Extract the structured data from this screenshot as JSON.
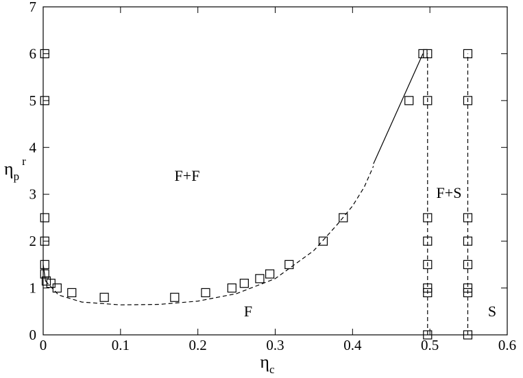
{
  "chart_data": {
    "type": "scatter",
    "xlabel": {
      "symbol": "η",
      "subscript": "c"
    },
    "ylabel": {
      "symbol": "η",
      "subscript": "p",
      "superscript": "r"
    },
    "annotations": [
      "F+F",
      "F",
      "F+S",
      "S"
    ],
    "xlim": [
      0,
      0.6
    ],
    "xticks": [
      0,
      0.1,
      0.2,
      0.3,
      0.4,
      0.5,
      0.6
    ],
    "ylim": [
      0,
      7
    ],
    "yticks": [
      0,
      1,
      2,
      3,
      4,
      5,
      6,
      7
    ],
    "series": [
      {
        "style": "squares",
        "color": "#000000",
        "x": [
          0.002,
          0.002,
          0.002,
          0.002,
          0.002,
          0.002,
          0.004,
          0.01,
          0.018,
          0.037,
          0.079,
          0.17,
          0.21,
          0.244,
          0.26,
          0.28,
          0.293,
          0.318,
          0.362,
          0.388,
          0.473,
          0.491,
          0.497,
          0.497,
          0.497,
          0.497,
          0.497,
          0.497,
          0.497,
          0.497,
          0.549,
          0.549,
          0.549,
          0.549,
          0.549,
          0.549,
          0.549,
          0.549
        ],
        "values": [
          6,
          5,
          2.5,
          2,
          1.5,
          1.3,
          1.15,
          1.1,
          1.0,
          0.9,
          0.8,
          0.8,
          0.9,
          1.0,
          1.1,
          1.2,
          1.3,
          1.5,
          2,
          2.5,
          5,
          6,
          6,
          5,
          2.5,
          2,
          1.5,
          1.0,
          0.9,
          0,
          6,
          5,
          2.5,
          2,
          1.5,
          1.0,
          0.9,
          0
        ]
      },
      {
        "style": "dashed",
        "color": "#000000",
        "x": [
          0.003,
          0.02,
          0.05,
          0.1,
          0.15,
          0.2,
          0.25,
          0.3,
          0.35,
          0.38,
          0.4,
          0.415,
          0.427
        ],
        "values": [
          1.15,
          0.85,
          0.7,
          0.64,
          0.65,
          0.72,
          0.88,
          1.2,
          1.8,
          2.35,
          2.75,
          3.15,
          3.6
        ]
      },
      {
        "style": "solid",
        "color": "#000000",
        "x": [
          0.427,
          0.491
        ],
        "values": [
          3.65,
          6
        ]
      },
      {
        "style": "solid",
        "color": "#000000",
        "x": [
          0.0,
          0.003
        ],
        "values": [
          1.5,
          1.15
        ]
      },
      {
        "style": "dashed",
        "color": "#000000",
        "x": [
          0.497,
          0.497
        ],
        "values": [
          0,
          6
        ]
      },
      {
        "style": "dashed",
        "color": "#000000",
        "x": [
          0.549,
          0.549
        ],
        "values": [
          0,
          6
        ]
      }
    ]
  }
}
